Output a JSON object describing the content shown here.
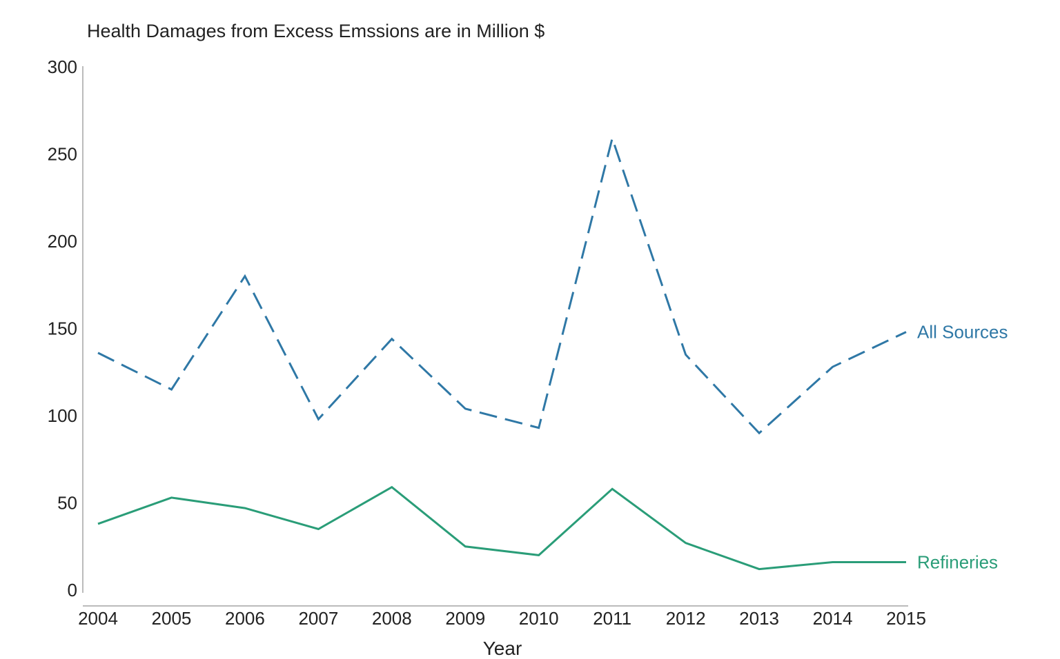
{
  "chart_data": {
    "type": "line",
    "title": "Health Damages from Excess Emssions are in Million $",
    "xlabel": "Year",
    "ylabel": "",
    "ylim": [
      0,
      300
    ],
    "yticks": [
      0,
      50,
      100,
      150,
      200,
      250,
      300
    ],
    "categories": [
      "2004",
      "2005",
      "2006",
      "2007",
      "2008",
      "2009",
      "2010",
      "2011",
      "2012",
      "2013",
      "2014",
      "2015"
    ],
    "grid": false,
    "legend": "inline-right",
    "series": [
      {
        "name": "All Sources",
        "style": "dashed",
        "color": "#2f78a6",
        "values": [
          136,
          115,
          180,
          98,
          144,
          104,
          93,
          259,
          135,
          90,
          128,
          148
        ]
      },
      {
        "name": "Refineries",
        "style": "solid",
        "color": "#2a9d78",
        "values": [
          38,
          53,
          47,
          35,
          59,
          25,
          20,
          58,
          27,
          12,
          16,
          16
        ]
      }
    ]
  }
}
